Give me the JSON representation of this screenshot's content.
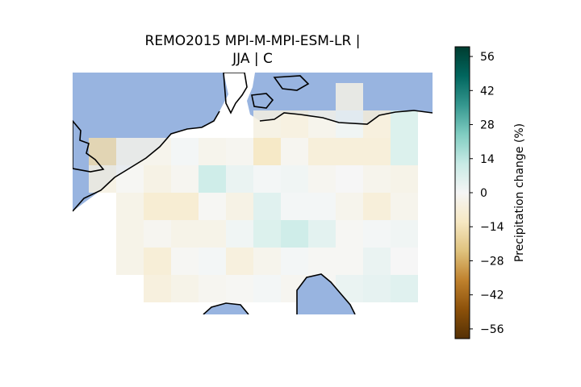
{
  "title": {
    "line1": "REMO2015 MPI-M-MPI-ESM-LR |",
    "line2": "JJA | C"
  },
  "colorbar": {
    "label": "Precipitation change (%)",
    "ticks": [
      "56",
      "42",
      "28",
      "14",
      "0",
      "−14",
      "−28",
      "−42",
      "−56"
    ],
    "tick_values": [
      56,
      42,
      28,
      14,
      0,
      -14,
      -28,
      -42,
      -56
    ],
    "vmin": -60,
    "vmax": 60,
    "colormap": "BrBG",
    "stops": [
      "#543005",
      "#8c510a",
      "#bf812d",
      "#dfc27d",
      "#f6e8c3",
      "#f5f5f5",
      "#c7eae5",
      "#80cdc1",
      "#35978f",
      "#01665e",
      "#003c30"
    ]
  },
  "colors": {
    "water": "#98b4e0",
    "coastline": "#000000"
  },
  "chart_data": {
    "type": "heatmap",
    "value_unit": "%",
    "rows": [
      [
        null,
        null,
        null,
        null,
        null,
        null,
        null,
        null,
        null,
        -4,
        null,
        null
      ],
      [
        null,
        null,
        null,
        null,
        null,
        null,
        -5,
        -6,
        -3,
        2,
        -7,
        8
      ],
      [
        -16,
        -3,
        -3,
        1,
        -3,
        -2,
        -13,
        -2,
        -8,
        -8,
        -8,
        8
      ],
      [
        -5,
        -1,
        -5,
        -2,
        12,
        4,
        1,
        2,
        -2,
        0,
        -3,
        -4
      ],
      [
        null,
        -4,
        -10,
        -10,
        -1,
        -5,
        7,
        1,
        1,
        -3,
        -8,
        -3
      ],
      [
        null,
        -4,
        -2,
        -4,
        -4,
        2,
        8,
        12,
        6,
        -1,
        1,
        2
      ],
      [
        null,
        -4,
        -9,
        -1,
        1,
        -7,
        -3,
        1,
        -1,
        -1,
        4,
        0
      ],
      [
        null,
        null,
        -7,
        -4,
        -2,
        -1,
        1,
        -2,
        -1,
        4,
        5,
        7
      ]
    ]
  }
}
